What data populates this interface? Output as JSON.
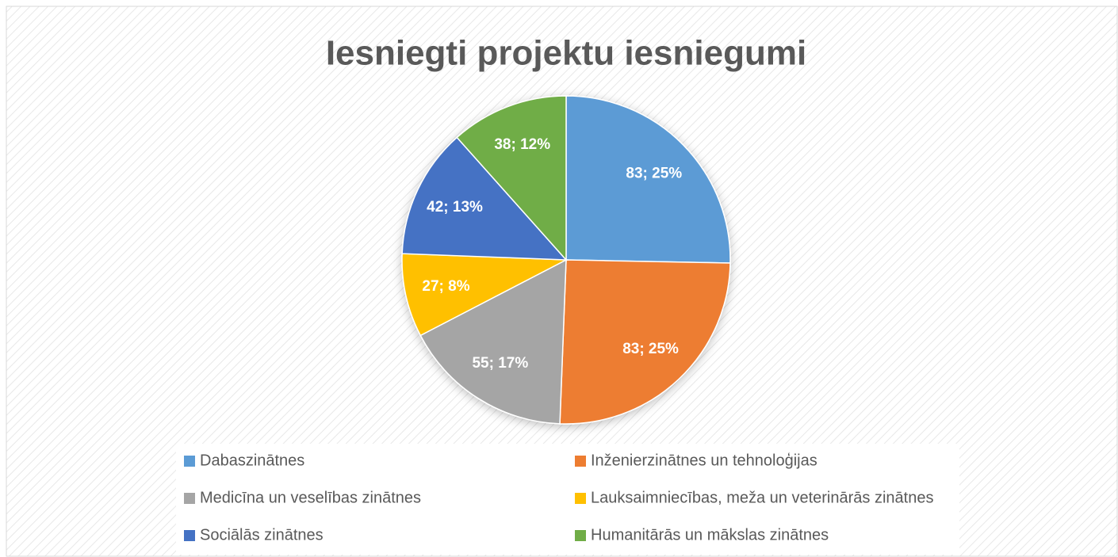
{
  "chart_data": {
    "type": "pie",
    "title": "Iesniegti projektu iesniegumi",
    "categories": [
      "Dabaszinātnes",
      "Inženierzinātnes un tehnoloģijas",
      "Medicīna un veselības zinātnes",
      "Lauksaimniecības, meža un veterinārās zinātnes",
      "Sociālās zinātnes",
      "Humanitārās un mākslas zinātnes"
    ],
    "values": [
      83,
      83,
      55,
      27,
      42,
      38
    ],
    "value_labels": [
      "83; 25%",
      "83; 25%",
      "55; 17%",
      "27; 8%",
      "42; 13%",
      "38; 12%"
    ],
    "colors": [
      "#5b9bd5",
      "#ed7d31",
      "#a5a5a5",
      "#ffc000",
      "#4472c4",
      "#70ad47"
    ],
    "legend": "bottom"
  }
}
